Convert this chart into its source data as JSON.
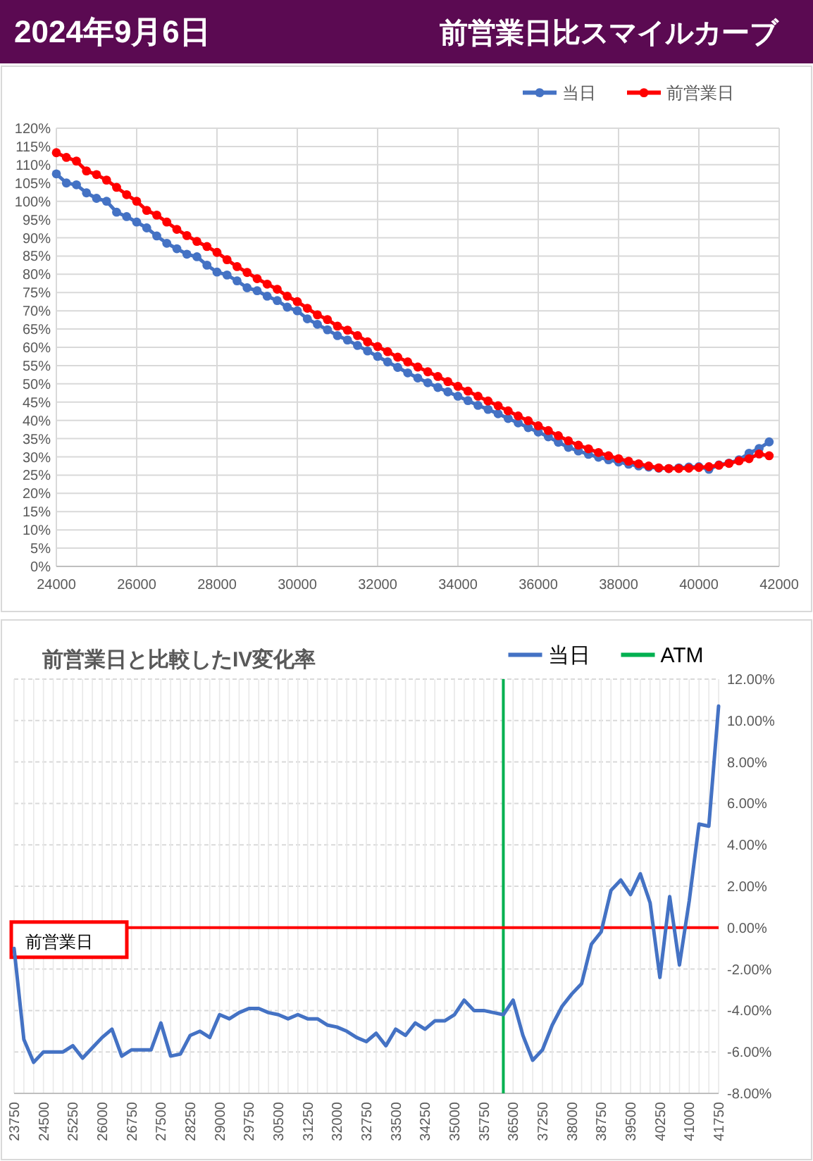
{
  "chart_data": [
    {
      "type": "line",
      "title": "2024年9月6日",
      "subtitle": "前営業日比スマイルカーブ",
      "x": [
        24000,
        24250,
        24500,
        24750,
        25000,
        25250,
        25500,
        25750,
        26000,
        26250,
        26500,
        26750,
        27000,
        27250,
        27500,
        27750,
        28000,
        28250,
        28500,
        28750,
        29000,
        29250,
        29500,
        29750,
        30000,
        30250,
        30500,
        30750,
        31000,
        31250,
        31500,
        31750,
        32000,
        32250,
        32500,
        32750,
        33000,
        33250,
        33500,
        33750,
        34000,
        34250,
        34500,
        34750,
        35000,
        35250,
        35500,
        35750,
        36000,
        36250,
        36500,
        36750,
        37000,
        37250,
        37500,
        37750,
        38000,
        38250,
        38500,
        38750,
        39000,
        39250,
        39500,
        39750,
        40000,
        40250,
        40500,
        40750,
        41000,
        41250,
        41500,
        41750
      ],
      "series": [
        {
          "name": "当日",
          "color": "#4472c4",
          "values": [
            107.5,
            105,
            104.5,
            102.3,
            100.8,
            100,
            97,
            95.8,
            94.3,
            92.7,
            90.5,
            88.5,
            87,
            85.5,
            84.8,
            82.5,
            80.6,
            79.8,
            78.2,
            76.3,
            75.5,
            74,
            72.8,
            71,
            70,
            67.8,
            66.3,
            64.8,
            63.2,
            62,
            60.5,
            59,
            57.5,
            56,
            54.5,
            53,
            51.6,
            50.3,
            49,
            47.8,
            46.6,
            45.4,
            44.1,
            43,
            41.8,
            40.5,
            39.3,
            38,
            36.8,
            35.5,
            34,
            32.6,
            31.6,
            30.7,
            29.9,
            29.2,
            28.6,
            28,
            27.5,
            27.2,
            26.9,
            26.8,
            27,
            27.2,
            27.3,
            26.6,
            27.8,
            28.3,
            29.2,
            31,
            32.3,
            34.1
          ]
        },
        {
          "name": "前営業日",
          "color": "#ff0000",
          "values": [
            113.3,
            112,
            111,
            108.3,
            107.3,
            105.8,
            103.8,
            101.8,
            100,
            97.5,
            96.2,
            94.3,
            92.3,
            90.6,
            89,
            87.6,
            86,
            84,
            82.1,
            80.5,
            78.8,
            77.3,
            75.9,
            74,
            72.5,
            70.7,
            68.9,
            67.6,
            65.8,
            64.7,
            63.2,
            61.5,
            60.2,
            58.8,
            57.3,
            56,
            54.6,
            53.3,
            52,
            50.6,
            49.3,
            48,
            46.6,
            45.3,
            44,
            42.6,
            41.2,
            39.9,
            38.5,
            37.2,
            35.8,
            34.4,
            33.2,
            32.2,
            31.2,
            30.3,
            29.5,
            28.8,
            28.1,
            27.5,
            27,
            26.8,
            26.8,
            26.9,
            27.1,
            27.3,
            27.7,
            28.2,
            28.9,
            29.5,
            30.8,
            30.3
          ]
        }
      ],
      "xlim": [
        24000,
        42000
      ],
      "xticks": [
        24000,
        26000,
        28000,
        30000,
        32000,
        34000,
        36000,
        38000,
        40000,
        42000
      ],
      "ylim": [
        0,
        120
      ],
      "yticks": [
        {
          "value": 0,
          "label": "0%"
        },
        {
          "value": 5,
          "label": "5%"
        },
        {
          "value": 10,
          "label": "10%"
        },
        {
          "value": 15,
          "label": "15%"
        },
        {
          "value": 20,
          "label": "20%"
        },
        {
          "value": 25,
          "label": "25%"
        },
        {
          "value": 30,
          "label": "30%"
        },
        {
          "value": 35,
          "label": "35%"
        },
        {
          "value": 40,
          "label": "40%"
        },
        {
          "value": 45,
          "label": "45%"
        },
        {
          "value": 50,
          "label": "50%"
        },
        {
          "value": 55,
          "label": "55%"
        },
        {
          "value": 60,
          "label": "60%"
        },
        {
          "value": 65,
          "label": "65%"
        },
        {
          "value": 70,
          "label": "70%"
        },
        {
          "value": 75,
          "label": "75%"
        },
        {
          "value": 80,
          "label": "80%"
        },
        {
          "value": 85,
          "label": "85%"
        },
        {
          "value": 90,
          "label": "90%"
        },
        {
          "value": 95,
          "label": "95%"
        },
        {
          "value": 100,
          "label": "100%"
        },
        {
          "value": 105,
          "label": "105%"
        },
        {
          "value": 110,
          "label": "110%"
        },
        {
          "value": 115,
          "label": "115%"
        },
        {
          "value": 120,
          "label": "120%"
        }
      ],
      "grid": true,
      "legend": "top right",
      "marker": "circle"
    },
    {
      "type": "line",
      "title": "前営業日と比較したIV変化率",
      "x": [
        23750,
        24000,
        24250,
        24500,
        24750,
        25000,
        25250,
        25500,
        25750,
        26000,
        26250,
        26500,
        26750,
        27000,
        27250,
        27500,
        27750,
        28000,
        28250,
        28500,
        28750,
        29000,
        29250,
        29500,
        29750,
        30000,
        30250,
        30500,
        30750,
        31000,
        31250,
        31500,
        31750,
        32000,
        32250,
        32500,
        32750,
        33000,
        33250,
        33500,
        33750,
        34000,
        34250,
        34500,
        34750,
        35000,
        35250,
        35500,
        35750,
        36000,
        36250,
        36500,
        36750,
        37000,
        37250,
        37500,
        37750,
        38000,
        38250,
        38500,
        38750,
        39000,
        39250,
        39500,
        39750,
        40000,
        40250,
        40500,
        40750,
        41000,
        41250,
        41500,
        41750
      ],
      "series": [
        {
          "name": "当日",
          "color": "#4472c4",
          "axis": "y2",
          "values": [
            -1.0,
            -5.4,
            -6.5,
            -6.0,
            -6.0,
            -6.0,
            -5.7,
            -6.3,
            -5.8,
            -5.3,
            -4.9,
            -6.2,
            -5.9,
            -5.9,
            -5.9,
            -4.6,
            -6.2,
            -6.1,
            -5.2,
            -5.0,
            -5.3,
            -4.2,
            -4.4,
            -4.1,
            -3.9,
            -3.9,
            -4.1,
            -4.2,
            -4.4,
            -4.2,
            -4.4,
            -4.4,
            -4.7,
            -4.8,
            -5.0,
            -5.3,
            -5.5,
            -5.1,
            -5.7,
            -4.9,
            -5.2,
            -4.6,
            -4.9,
            -4.5,
            -4.5,
            -4.2,
            -3.5,
            -4.0,
            -4.0,
            -4.1,
            -4.2,
            -3.5,
            -5.2,
            -6.4,
            -5.9,
            -4.7,
            -3.8,
            -3.2,
            -2.7,
            -0.8,
            -0.2,
            1.8,
            2.3,
            1.6,
            2.6,
            1.2,
            -2.4,
            1.5,
            -1.8,
            1.3,
            5.0,
            4.9,
            10.7
          ]
        }
      ],
      "xlim": [
        23750,
        41750
      ],
      "xticks": [
        23750,
        {
          "value": 24000,
          "label": null
        },
        {
          "value": 24250,
          "label": null
        },
        24500,
        {
          "value": 24750,
          "label": null
        },
        {
          "value": 25000,
          "label": null
        },
        25250,
        {
          "value": 25500,
          "label": null
        },
        {
          "value": 25750,
          "label": null
        },
        26000,
        {
          "value": 26250,
          "label": null
        },
        {
          "value": 26500,
          "label": null
        },
        26750,
        {
          "value": 27000,
          "label": null
        },
        {
          "value": 27250,
          "label": null
        },
        27500,
        {
          "value": 27750,
          "label": null
        },
        {
          "value": 28000,
          "label": null
        },
        28250,
        {
          "value": 28500,
          "label": null
        },
        {
          "value": 28750,
          "label": null
        },
        29000,
        {
          "value": 29250,
          "label": null
        },
        {
          "value": 29500,
          "label": null
        },
        29750,
        {
          "value": 30000,
          "label": null
        },
        {
          "value": 30250,
          "label": null
        },
        30500,
        {
          "value": 30750,
          "label": null
        },
        {
          "value": 31000,
          "label": null
        },
        31250,
        {
          "value": 31500,
          "label": null
        },
        {
          "value": 31750,
          "label": null
        },
        32000,
        {
          "value": 32250,
          "label": null
        },
        {
          "value": 32500,
          "label": null
        },
        32750,
        {
          "value": 33000,
          "label": null
        },
        {
          "value": 33250,
          "label": null
        },
        33500,
        {
          "value": 33750,
          "label": null
        },
        {
          "value": 34000,
          "label": null
        },
        34250,
        {
          "value": 34500,
          "label": null
        },
        {
          "value": 34750,
          "label": null
        },
        35000,
        {
          "value": 35250,
          "label": null
        },
        {
          "value": 35500,
          "label": null
        },
        35750,
        {
          "value": 36000,
          "label": null
        },
        {
          "value": 36250,
          "label": null
        },
        36500,
        {
          "value": 36750,
          "label": null
        },
        {
          "value": 37000,
          "label": null
        },
        37250,
        {
          "value": 37500,
          "label": null
        },
        {
          "value": 37750,
          "label": null
        },
        38000,
        {
          "value": 38250,
          "label": null
        },
        {
          "value": 38500,
          "label": null
        },
        38750,
        {
          "value": 39000,
          "label": null
        },
        {
          "value": 39250,
          "label": null
        },
        39500,
        {
          "value": 39750,
          "label": null
        },
        {
          "value": 40000,
          "label": null
        },
        40250,
        {
          "value": 40500,
          "label": null
        },
        {
          "value": 40750,
          "label": null
        },
        41000,
        {
          "value": 41250,
          "label": null
        },
        {
          "value": 41500,
          "label": null
        },
        41750
      ],
      "y2lim": [
        -8,
        12
      ],
      "y2ticks": [
        {
          "value": -8,
          "label": "-8.00%"
        },
        {
          "value": -6,
          "label": "-6.00%"
        },
        {
          "value": -4,
          "label": "-4.00%"
        },
        {
          "value": -2,
          "label": "-2.00%"
        },
        {
          "value": 0,
          "label": "0.00%"
        },
        {
          "value": 2,
          "label": "2.00%"
        },
        {
          "value": 4,
          "label": "4.00%"
        },
        {
          "value": 6,
          "label": "6.00%"
        },
        {
          "value": 8,
          "label": "8.00%"
        },
        {
          "value": 10,
          "label": "10.00%"
        },
        {
          "value": 12,
          "label": "12.00%"
        }
      ],
      "ref_lines": [
        {
          "axis": "x",
          "value": 36250,
          "label": "ATM",
          "color": "#00b050"
        },
        {
          "axis": "y2",
          "value": 0,
          "label": "前営業日",
          "color": "#ff0000"
        }
      ],
      "grid": true,
      "legend": "top right"
    }
  ]
}
